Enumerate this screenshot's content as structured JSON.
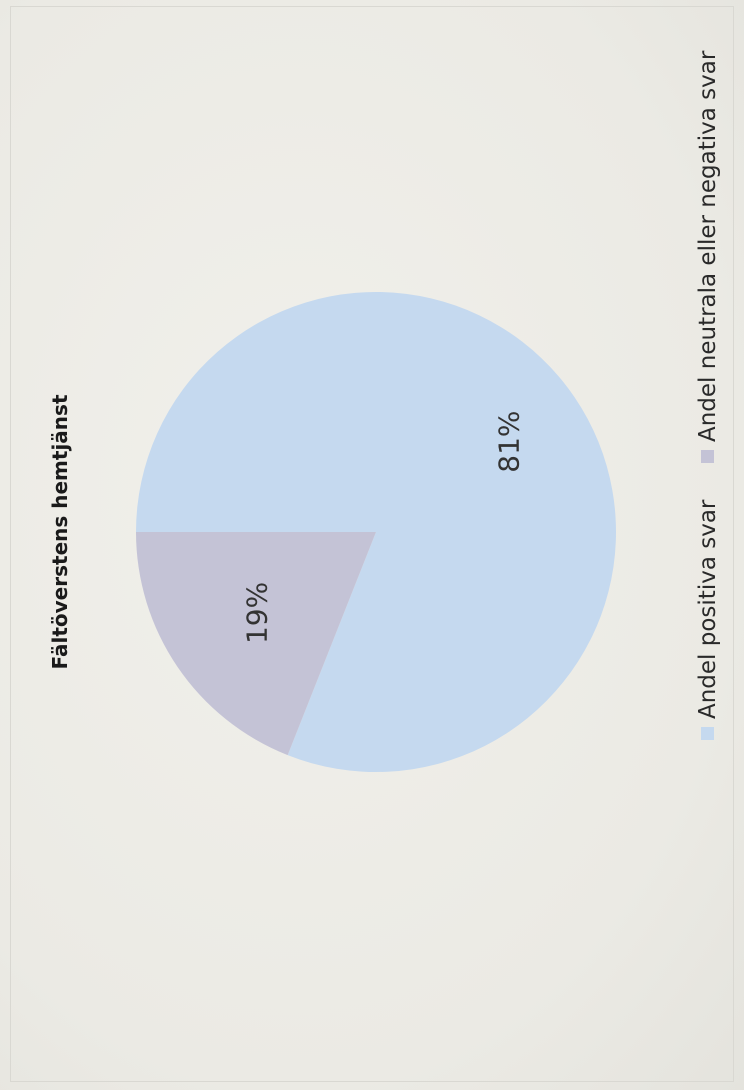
{
  "chart_data": {
    "type": "pie",
    "title": "Fältöverstens hemtjänst",
    "slices": [
      {
        "label": "Andel positiva svar",
        "value": 81,
        "value_label": "81%",
        "color": "#c5d9ef"
      },
      {
        "label": "Andel neutrala eller negativa svar",
        "value": 19,
        "value_label": "19%",
        "color": "#c4c3d6"
      }
    ],
    "legend_position": "bottom",
    "orientation": "rotated 90° counter-clockwise"
  }
}
